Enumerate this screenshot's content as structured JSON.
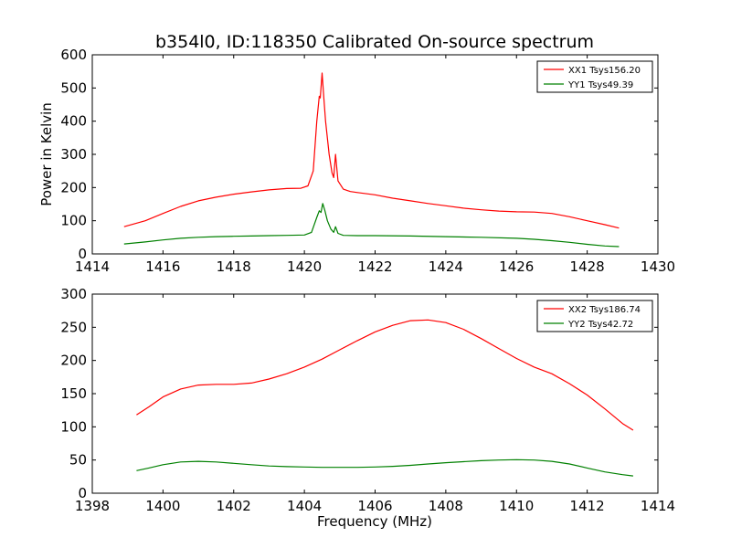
{
  "title": "b354l0, ID:118350 Calibrated On-source spectrum",
  "xlabel": "Frequency (MHz)",
  "ylabel": "Power in Kelvin",
  "chart_data": [
    {
      "type": "line",
      "title": "b354l0, ID:118350 Calibrated On-source spectrum",
      "xlabel": "",
      "ylabel": "Power in Kelvin",
      "xlim": [
        1414,
        1430
      ],
      "ylim": [
        0,
        600
      ],
      "xticks": [
        1414,
        1416,
        1418,
        1420,
        1422,
        1424,
        1426,
        1428,
        1430
      ],
      "yticks": [
        0,
        100,
        200,
        300,
        400,
        500,
        600
      ],
      "legend_position": "top-right",
      "series": [
        {
          "name": "XX1 Tsys156.20",
          "color": "#ff0000",
          "x": [
            1414.9,
            1415.5,
            1416.0,
            1416.5,
            1417.0,
            1417.5,
            1418.0,
            1418.5,
            1419.0,
            1419.5,
            1419.9,
            1420.1,
            1420.25,
            1420.35,
            1420.42,
            1420.45,
            1420.5,
            1420.55,
            1420.6,
            1420.7,
            1420.78,
            1420.83,
            1420.88,
            1420.95,
            1421.1,
            1421.3,
            1421.5,
            1422.0,
            1422.5,
            1423.0,
            1423.5,
            1424.0,
            1424.5,
            1425.0,
            1425.5,
            1426.0,
            1426.5,
            1427.0,
            1427.5,
            1428.0,
            1428.5,
            1428.9
          ],
          "values": [
            82,
            100,
            122,
            143,
            160,
            171,
            180,
            187,
            193,
            197,
            198,
            205,
            250,
            400,
            475,
            470,
            545,
            470,
            400,
            300,
            245,
            230,
            300,
            220,
            195,
            188,
            185,
            178,
            168,
            160,
            152,
            145,
            138,
            133,
            129,
            127,
            126,
            122,
            112,
            100,
            88,
            78
          ]
        },
        {
          "name": "YY1 Tsys49.39",
          "color": "#008000",
          "x": [
            1414.9,
            1415.5,
            1416.0,
            1416.5,
            1417.0,
            1417.5,
            1418.0,
            1418.5,
            1419.0,
            1419.5,
            1420.0,
            1420.2,
            1420.35,
            1420.42,
            1420.47,
            1420.52,
            1420.58,
            1420.65,
            1420.75,
            1420.83,
            1420.88,
            1420.95,
            1421.1,
            1421.5,
            1422.0,
            1423.0,
            1424.0,
            1425.0,
            1426.0,
            1426.5,
            1427.0,
            1427.5,
            1428.0,
            1428.5,
            1428.9
          ],
          "values": [
            30,
            36,
            42,
            47,
            50,
            52,
            53,
            54,
            55,
            56,
            57,
            65,
            110,
            130,
            125,
            152,
            130,
            100,
            75,
            65,
            82,
            62,
            56,
            55,
            55,
            54,
            52,
            50,
            47,
            44,
            40,
            35,
            29,
            24,
            22
          ]
        }
      ]
    },
    {
      "type": "line",
      "title": "",
      "xlabel": "Frequency (MHz)",
      "ylabel": "",
      "xlim": [
        1398,
        1414
      ],
      "ylim": [
        0,
        300
      ],
      "xticks": [
        1398,
        1400,
        1402,
        1404,
        1406,
        1408,
        1410,
        1412,
        1414
      ],
      "yticks": [
        0,
        50,
        100,
        150,
        200,
        250,
        300
      ],
      "legend_position": "top-right",
      "series": [
        {
          "name": "XX2 Tsys186.74",
          "color": "#ff0000",
          "x": [
            1399.25,
            1399.6,
            1400.0,
            1400.5,
            1401.0,
            1401.5,
            1402.0,
            1402.5,
            1403.0,
            1403.5,
            1404.0,
            1404.5,
            1405.0,
            1405.5,
            1406.0,
            1406.5,
            1407.0,
            1407.5,
            1408.0,
            1408.5,
            1409.0,
            1409.5,
            1410.0,
            1410.5,
            1411.0,
            1411.5,
            1412.0,
            1412.5,
            1413.0,
            1413.3
          ],
          "values": [
            118,
            130,
            145,
            157,
            163,
            164,
            164,
            166,
            172,
            180,
            190,
            202,
            216,
            230,
            243,
            253,
            260,
            261,
            257,
            247,
            233,
            218,
            203,
            190,
            180,
            165,
            148,
            127,
            105,
            95
          ]
        },
        {
          "name": "YY2 Tsys42.72",
          "color": "#008000",
          "x": [
            1399.25,
            1399.6,
            1400.0,
            1400.5,
            1401.0,
            1401.5,
            1402.0,
            1402.5,
            1403.0,
            1403.5,
            1404.0,
            1404.5,
            1405.0,
            1405.5,
            1406.0,
            1406.5,
            1407.0,
            1407.5,
            1408.0,
            1408.5,
            1409.0,
            1409.5,
            1410.0,
            1410.5,
            1411.0,
            1411.5,
            1412.0,
            1412.5,
            1413.0,
            1413.3
          ],
          "values": [
            34,
            38,
            43,
            47,
            48,
            47,
            45,
            43,
            41,
            40,
            39.5,
            39,
            39,
            39,
            39.5,
            40.5,
            42,
            44,
            46,
            47.5,
            49,
            50,
            50.5,
            50,
            48,
            44,
            38,
            32,
            28,
            26
          ]
        }
      ]
    }
  ]
}
